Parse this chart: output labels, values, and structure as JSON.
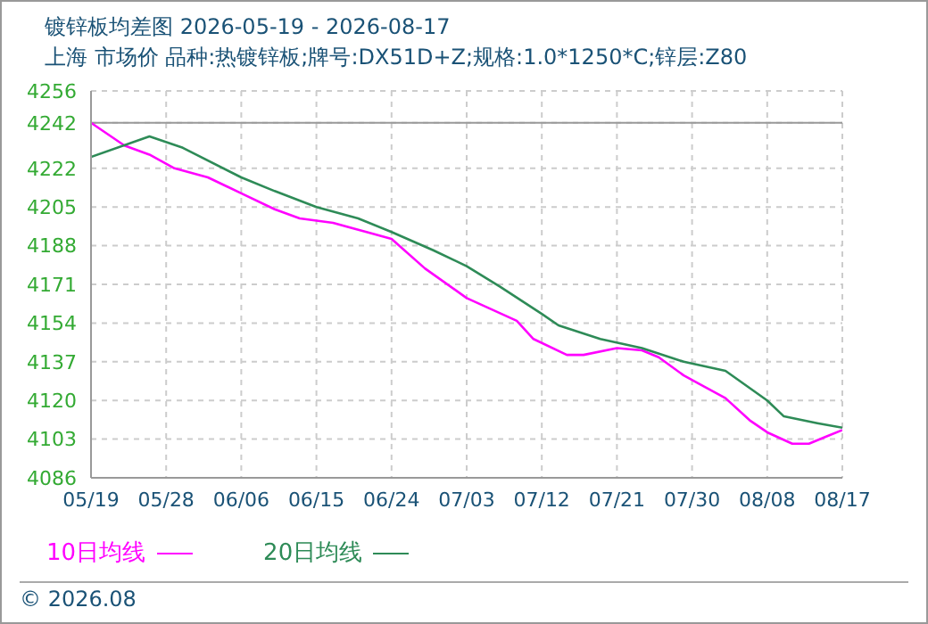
{
  "chart_data": {
    "type": "line",
    "title": "镀锌板均差图 2026-05-19 - 2026-08-17",
    "subtitle": "上海 市场价 品种:热镀锌板;牌号:DX51D+Z;规格:1.0*1250*C;锌层:Z80",
    "series": [
      {
        "name": "10日均线",
        "color": "#ff00ff",
        "x": [
          "2026-05-19",
          "2026-05-23",
          "2026-05-26",
          "2026-05-29",
          "2026-06-02",
          "2026-06-06",
          "2026-06-10",
          "2026-06-13",
          "2026-06-17",
          "2026-06-21",
          "2026-06-24",
          "2026-06-28",
          "2026-07-03",
          "2026-07-09",
          "2026-07-11",
          "2026-07-15",
          "2026-07-17",
          "2026-07-21",
          "2026-07-24",
          "2026-07-26",
          "2026-07-29",
          "2026-07-31",
          "2026-08-03",
          "2026-08-06",
          "2026-08-08",
          "2026-08-11",
          "2026-08-13",
          "2026-08-15",
          "2026-08-17"
        ],
        "values": [
          4242,
          4232,
          4228,
          4222,
          4218,
          4211,
          4204,
          4200,
          4198,
          4194,
          4191,
          4178,
          4165,
          4155,
          4147,
          4140,
          4140,
          4143,
          4142,
          4139,
          4131,
          4127,
          4121,
          4111,
          4106,
          4101,
          4101,
          4104,
          4107
        ]
      },
      {
        "name": "20日均线",
        "color": "#2e8b57",
        "x": [
          "2026-05-19",
          "2026-05-26",
          "2026-05-30",
          "2026-06-06",
          "2026-06-10",
          "2026-06-15",
          "2026-06-20",
          "2026-06-24",
          "2026-06-29",
          "2026-07-03",
          "2026-07-07",
          "2026-07-12",
          "2026-07-14",
          "2026-07-19",
          "2026-07-24",
          "2026-07-29",
          "2026-08-03",
          "2026-08-08",
          "2026-08-10",
          "2026-08-14",
          "2026-08-17"
        ],
        "values": [
          4227,
          4236,
          4231,
          4218,
          4212,
          4205,
          4200,
          4194,
          4186,
          4179,
          4170,
          4158,
          4153,
          4147,
          4143,
          4137,
          4133,
          4120,
          4113,
          4110,
          4108
        ]
      }
    ],
    "xlim": [
      "2026-05-19",
      "2026-08-17"
    ],
    "xticks": [
      {
        "value": "2026-05-19",
        "label": "05/19"
      },
      {
        "value": "2026-05-28",
        "label": "05/28"
      },
      {
        "value": "2026-06-06",
        "label": "06/06"
      },
      {
        "value": "2026-06-15",
        "label": "06/15"
      },
      {
        "value": "2026-06-24",
        "label": "06/24"
      },
      {
        "value": "2026-07-03",
        "label": "07/03"
      },
      {
        "value": "2026-07-12",
        "label": "07/12"
      },
      {
        "value": "2026-07-21",
        "label": "07/21"
      },
      {
        "value": "2026-07-30",
        "label": "07/30"
      },
      {
        "value": "2026-08-08",
        "label": "08/08"
      },
      {
        "value": "2026-08-17",
        "label": "08/17"
      }
    ],
    "ylim": [
      4086,
      4256
    ],
    "yticks": [
      4086,
      4103,
      4120,
      4137,
      4154,
      4171,
      4188,
      4205,
      4222,
      4242,
      4256
    ],
    "ref_lines": [
      {
        "axis": "y",
        "value": 4242,
        "color": "#999999",
        "line_style": "solid"
      }
    ],
    "grid": true,
    "legend": "bottom left",
    "marker": "none",
    "line_style": "solid",
    "annotations": [
      "© 2026.08"
    ]
  }
}
